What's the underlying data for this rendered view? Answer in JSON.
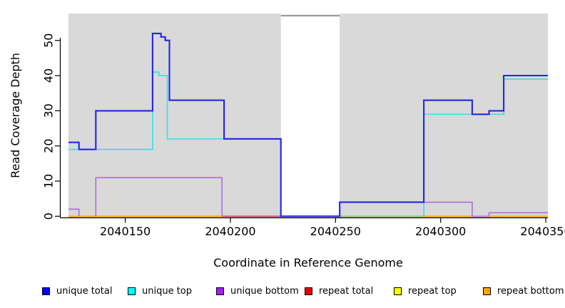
{
  "chart_data": {
    "type": "line",
    "subtype": "step-coverage-plot",
    "title": "",
    "xlabel": "Coordinate in Reference Genome",
    "ylabel": "Read Coverage Depth",
    "xlim": [
      2040123,
      2040351
    ],
    "ylim": [
      0,
      57
    ],
    "x_ticks": [
      2040150,
      2040200,
      2040250,
      2040300,
      2040350
    ],
    "y_ticks": [
      0,
      10,
      20,
      30,
      40,
      50
    ],
    "grid": false,
    "panel_bg": "#d9d9d9",
    "gap_region": {
      "from": 2040224,
      "to": 2040252,
      "fill": "#ffffff",
      "top_line_color": "#9a9a9a"
    },
    "axis_color": "#000000",
    "series": [
      {
        "name": "repeat total",
        "color": "#e80000",
        "pieces": [
          [
            [
              2040123,
              2040351,
              0
            ]
          ]
        ]
      },
      {
        "name": "repeat top",
        "color": "#ffff00",
        "pieces": [
          [
            [
              2040123,
              2040351,
              0
            ]
          ]
        ]
      },
      {
        "name": "repeat bottom",
        "color": "#ffa500",
        "pieces": [
          [
            [
              2040123,
              2040351,
              0
            ]
          ]
        ]
      },
      {
        "name": "unique bottom",
        "color": "#b273de",
        "pieces": [
          [
            [
              2040123,
              2040128,
              2
            ],
            [
              2040128,
              2040128,
              0
            ]
          ],
          [
            [
              2040136,
              2040136,
              0
            ],
            [
              2040136,
              2040196,
              11
            ],
            [
              2040196,
              2040196,
              0
            ]
          ],
          [
            [
              2040252,
              2040252,
              0
            ],
            [
              2040252,
              2040315,
              4
            ],
            [
              2040315,
              2040323,
              0
            ],
            [
              2040323,
              2040351,
              1
            ]
          ]
        ]
      },
      {
        "name": "unique top",
        "color": "#3be0e8",
        "pieces": [
          [
            [
              2040123,
              2040163,
              19
            ],
            [
              2040163,
              2040166,
              41
            ],
            [
              2040166,
              2040170,
              40
            ],
            [
              2040170,
              2040224,
              22
            ],
            [
              2040224,
              2040224,
              0
            ]
          ],
          [
            [
              2040292,
              2040292,
              0
            ],
            [
              2040292,
              2040330,
              29
            ],
            [
              2040330,
              2040351,
              39
            ]
          ]
        ]
      },
      {
        "name": "unique total",
        "color": "#2424ec",
        "pieces": [
          [
            [
              2040123,
              2040128,
              21
            ],
            [
              2040128,
              2040136,
              19
            ],
            [
              2040136,
              2040163,
              30
            ],
            [
              2040163,
              2040167,
              52
            ],
            [
              2040167,
              2040169,
              51
            ],
            [
              2040169,
              2040171,
              50
            ],
            [
              2040171,
              2040197,
              33
            ],
            [
              2040197,
              2040224,
              22
            ],
            [
              2040224,
              2040252,
              0
            ],
            [
              2040252,
              2040292,
              4
            ],
            [
              2040292,
              2040315,
              33
            ],
            [
              2040315,
              2040323,
              29
            ],
            [
              2040323,
              2040330,
              30
            ],
            [
              2040330,
              2040351,
              40
            ]
          ]
        ]
      }
    ],
    "baseline_segments": [
      {
        "from": 2040196,
        "to": 2040224,
        "depth": 0,
        "color": "#cc4477"
      },
      {
        "from": 2040252,
        "to": 2040292,
        "depth": 0,
        "color": "#7dc87d"
      }
    ],
    "legend": [
      {
        "label": "unique total",
        "color": "#0000ff"
      },
      {
        "label": "unique top",
        "color": "#00ffff"
      },
      {
        "label": "unique bottom",
        "color": "#a020f0"
      },
      {
        "label": "repeat total",
        "color": "#e80000"
      },
      {
        "label": "repeat top",
        "color": "#ffff00"
      },
      {
        "label": "repeat bottom",
        "color": "#ffa500"
      }
    ]
  }
}
